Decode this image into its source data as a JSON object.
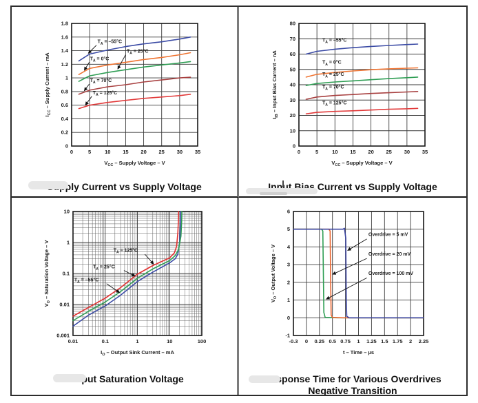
{
  "page": {
    "background": "#ffffff",
    "border_color": "#2c2c2c",
    "divider_vertical_color": "#7b7b7b",
    "divider_horizontal_color": "#161616",
    "grid_color": "#3a3a3a",
    "minor_grid_color": "#5f5f5f",
    "frame_color": "#151515",
    "text_color": "#1a1a1a",
    "arrow_color": "#111111"
  },
  "chart_data": [
    {
      "type": "line",
      "title": "Supply Current vs Supply Voltage",
      "xlabel": "V_{CC} – Supply Voltage – V",
      "ylabel": "I_{CC} – Supply Current – mA",
      "x_scale": "linear",
      "y_scale": "linear",
      "xlim": [
        0,
        35
      ],
      "ylim": [
        0,
        1.8
      ],
      "x_ticks": [
        0,
        5,
        10,
        15,
        20,
        25,
        30,
        35
      ],
      "x_tick_labels": [
        "0",
        "5",
        "10",
        "15",
        "20",
        "25",
        "30",
        "35"
      ],
      "y_ticks": [
        0,
        0.2,
        0.4,
        0.6,
        0.8,
        1,
        1.2,
        1.4,
        1.6,
        1.8
      ],
      "y_tick_labels": [
        "0",
        "0.2",
        "0.4",
        "0.6",
        "0.8",
        "1",
        "1.2",
        "1.4",
        "1.6",
        "1.8"
      ],
      "grid": true,
      "legend_position": "inline-annotations",
      "series": [
        {
          "name": "TA = -55°C",
          "color": "#3b4ba5",
          "x": [
            2,
            5,
            10,
            15,
            20,
            25,
            30,
            33
          ],
          "y": [
            1.25,
            1.35,
            1.41,
            1.46,
            1.5,
            1.53,
            1.57,
            1.6
          ]
        },
        {
          "name": "TA = 0°C",
          "color": "#ef7432",
          "x": [
            2,
            5,
            10,
            15,
            20,
            25,
            30,
            33
          ],
          "y": [
            1.05,
            1.14,
            1.19,
            1.23,
            1.27,
            1.3,
            1.34,
            1.37
          ]
        },
        {
          "name": "TA = 25°C",
          "color": "#2f9e54",
          "x": [
            2,
            5,
            10,
            15,
            20,
            25,
            30,
            33
          ],
          "y": [
            0.95,
            1.03,
            1.08,
            1.12,
            1.16,
            1.19,
            1.22,
            1.24
          ]
        },
        {
          "name": "TA = 70°C",
          "color": "#a84040",
          "x": [
            2,
            5,
            10,
            15,
            20,
            25,
            30,
            33
          ],
          "y": [
            0.76,
            0.82,
            0.87,
            0.9,
            0.94,
            0.97,
            1.0,
            1.01
          ]
        },
        {
          "name": "TA = 125°C",
          "color": "#e23b3b",
          "x": [
            2,
            5,
            10,
            15,
            20,
            25,
            30,
            33
          ],
          "y": [
            0.55,
            0.6,
            0.64,
            0.67,
            0.7,
            0.72,
            0.74,
            0.76
          ]
        }
      ],
      "annotations": [
        {
          "text": "T_{A} = –55°C",
          "x": 7.2,
          "y": 1.51,
          "arrow": {
            "x1": 6.9,
            "y1": 1.48,
            "x2": 4.6,
            "y2": 1.36
          }
        },
        {
          "text": "T_{A} = 0°C",
          "x": 5.1,
          "y": 1.26,
          "arrow": {
            "x1": 4.9,
            "y1": 1.23,
            "x2": 3.5,
            "y2": 1.11
          }
        },
        {
          "text": "T_{A} = 25°C",
          "x": 15.3,
          "y": 1.37,
          "arrow": {
            "x1": 15.0,
            "y1": 1.34,
            "x2": 12.8,
            "y2": 1.13
          }
        },
        {
          "text": "T_{A} = 70°C",
          "x": 5.1,
          "y": 0.94,
          "arrow": {
            "x1": 4.9,
            "y1": 0.91,
            "x2": 3.5,
            "y2": 0.81
          }
        },
        {
          "text": "T_{A} = 125°C",
          "x": 5.9,
          "y": 0.76,
          "arrow": {
            "x1": 5.6,
            "y1": 0.73,
            "x2": 3.8,
            "y2": 0.6
          }
        }
      ]
    },
    {
      "type": "line",
      "title": "Input Bias Current vs Supply Voltage",
      "xlabel": "V_{CC} – Supply Voltage – V",
      "ylabel": "I_{IB} – Input Bias Current – nA",
      "x_scale": "linear",
      "y_scale": "linear",
      "xlim": [
        0,
        35
      ],
      "ylim": [
        0,
        80
      ],
      "x_ticks": [
        0,
        5,
        10,
        15,
        20,
        25,
        30,
        35
      ],
      "x_tick_labels": [
        "0",
        "5",
        "10",
        "15",
        "20",
        "25",
        "30",
        "35"
      ],
      "y_ticks": [
        0,
        10,
        20,
        30,
        40,
        50,
        60,
        70,
        80
      ],
      "y_tick_labels": [
        "0",
        "10",
        "20",
        "30",
        "40",
        "50",
        "60",
        "70",
        "80"
      ],
      "grid": true,
      "legend_position": "inline-annotations",
      "series": [
        {
          "name": "TA = -55°C",
          "color": "#3b4ba5",
          "x": [
            2,
            5,
            10,
            15,
            20,
            25,
            30,
            33
          ],
          "y": [
            60,
            61.8,
            63.2,
            64.2,
            65,
            65.6,
            66.2,
            66.5
          ]
        },
        {
          "name": "TA = 0°C",
          "color": "#ef7432",
          "x": [
            2,
            5,
            10,
            15,
            20,
            25,
            30,
            33
          ],
          "y": [
            45,
            46.8,
            48,
            49,
            49.8,
            50.4,
            50.8,
            51
          ]
        },
        {
          "name": "TA = 25°C",
          "color": "#2f9e54",
          "x": [
            2,
            5,
            10,
            15,
            20,
            25,
            30,
            33
          ],
          "y": [
            39.5,
            40.8,
            41.8,
            42.5,
            43.3,
            44,
            44.6,
            45
          ]
        },
        {
          "name": "TA = 70°C",
          "color": "#a84040",
          "x": [
            2,
            5,
            10,
            15,
            20,
            25,
            30,
            33
          ],
          "y": [
            30.5,
            32,
            33,
            33.6,
            34.3,
            34.8,
            35.3,
            35.6
          ]
        },
        {
          "name": "TA = 125°C",
          "color": "#e23b3b",
          "x": [
            2,
            5,
            10,
            15,
            20,
            25,
            30,
            33
          ],
          "y": [
            21,
            22,
            22.6,
            23,
            23.5,
            24,
            24.3,
            24.6
          ]
        }
      ],
      "annotations": [
        {
          "text": "T_{A} = –55°C",
          "x": 6.5,
          "y": 68.2
        },
        {
          "text": "T_{A} = 0°C",
          "x": 6.5,
          "y": 53.6
        },
        {
          "text": "T_{A} = 25°C",
          "x": 6.5,
          "y": 45.8
        },
        {
          "text": "T_{A} = 70°C",
          "x": 6.5,
          "y": 37.6
        },
        {
          "text": "T_{A} = 125°C",
          "x": 6.5,
          "y": 27.2
        }
      ]
    },
    {
      "type": "line",
      "title": "Output Saturation Voltage",
      "xlabel": "I_{O} – Output Sink Current – mA",
      "ylabel": "V_{O} – Saturation Voltage – V",
      "x_scale": "log",
      "y_scale": "log",
      "xlim": [
        0.01,
        100
      ],
      "ylim": [
        0.001,
        10
      ],
      "x_ticks": [
        0.01,
        0.1,
        1,
        10,
        100
      ],
      "x_tick_labels": [
        "0.01",
        "0.1",
        "1",
        "10",
        "100"
      ],
      "y_ticks": [
        0.001,
        0.01,
        0.1,
        1,
        10
      ],
      "y_tick_labels": [
        "0.001",
        "0.01",
        "0.1",
        "1",
        "10"
      ],
      "grid": true,
      "minor_grid": true,
      "legend_position": "inline-annotations",
      "series": [
        {
          "name": "TA = -55°C",
          "color": "#3b4ba5",
          "x": [
            0.01,
            0.03,
            0.1,
            0.3,
            1,
            3,
            10,
            15,
            18,
            20.5,
            21.7,
            22
          ],
          "y": [
            0.002,
            0.0045,
            0.009,
            0.02,
            0.055,
            0.11,
            0.22,
            0.3,
            0.42,
            1.0,
            5,
            10
          ]
        },
        {
          "name": "TA = 25°C",
          "color": "#2f9e54",
          "x": [
            0.01,
            0.03,
            0.1,
            0.3,
            1,
            3,
            10,
            15,
            19,
            22.5,
            23.7,
            24
          ],
          "y": [
            0.003,
            0.006,
            0.012,
            0.026,
            0.07,
            0.14,
            0.26,
            0.38,
            0.6,
            1.6,
            5,
            10
          ]
        },
        {
          "name": "TA = 125°C",
          "color": "#e22f2f",
          "x": [
            0.01,
            0.03,
            0.1,
            0.3,
            1,
            3,
            10,
            14,
            16.5,
            18,
            18.7,
            19
          ],
          "y": [
            0.0042,
            0.008,
            0.016,
            0.035,
            0.095,
            0.18,
            0.32,
            0.46,
            0.75,
            2.0,
            5,
            10
          ]
        }
      ],
      "annotations": [
        {
          "text": "T_{A} = 125°C",
          "x": 0.18,
          "y": 0.5,
          "arrow": {
            "x1": 1.7,
            "y1": 0.42,
            "x2": 3.2,
            "y2": 0.2
          }
        },
        {
          "text": "T_{A} = 25°C",
          "x": 0.042,
          "y": 0.145,
          "arrow": {
            "x1": 0.38,
            "y1": 0.125,
            "x2": 0.85,
            "y2": 0.082
          }
        },
        {
          "text": "T_{A} = –55°C",
          "x": 0.011,
          "y": 0.056,
          "arrow": {
            "x1": 0.11,
            "y1": 0.047,
            "x2": 0.28,
            "y2": 0.024
          }
        }
      ]
    },
    {
      "type": "line",
      "title": "Response Time for Various Overdrives",
      "subtitle": "Negative Transition",
      "xlabel": "t – Time – µs",
      "ylabel": "V_{O} – Output Voltage – V",
      "x_scale": "segmented",
      "y_scale": "linear",
      "xlim": [
        -0.3,
        2.25
      ],
      "ylim": [
        -1,
        6
      ],
      "x_ticks": [
        -0.3,
        0,
        0.25,
        0.5,
        0.75,
        1,
        1.25,
        1.5,
        1.75,
        2,
        2.25
      ],
      "x_tick_labels": [
        "-0.3",
        "0",
        "0.25",
        "0.5",
        "0.75",
        "1",
        "1.25",
        "1.5",
        "1.75",
        "2",
        "2.25"
      ],
      "y_ticks": [
        -1,
        0,
        1,
        2,
        3,
        4,
        5,
        6
      ],
      "y_tick_labels": [
        "-1",
        "0",
        "1",
        "2",
        "3",
        "4",
        "5",
        "6"
      ],
      "grid": true,
      "legend_position": "inline-annotations",
      "series": [
        {
          "name": "Overdrive = 100 mV",
          "color": "#2f9e54",
          "x": [
            -0.3,
            0.29,
            0.315,
            0.325,
            0.335,
            0.36,
            0.6,
            2.25
          ],
          "y": [
            5,
            5,
            4.9,
            2.5,
            0.3,
            0.02,
            0,
            0
          ]
        },
        {
          "name": "Overdrive = 20 mV",
          "color": "#e8652f",
          "x": [
            -0.3,
            0.43,
            0.455,
            0.465,
            0.475,
            0.5,
            0.7,
            2.25
          ],
          "y": [
            5,
            5,
            4.9,
            2.0,
            0.15,
            0.02,
            0,
            0
          ]
        },
        {
          "name": "Overdrive = 5 mV",
          "color": "#3b44a0",
          "x": [
            -0.3,
            0.7,
            0.73,
            0.755,
            0.765,
            0.775,
            0.82,
            2.25
          ],
          "y": [
            5,
            5,
            5.05,
            4.5,
            1.0,
            0.08,
            0,
            0
          ]
        }
      ],
      "annotations": [
        {
          "text": "Overdrive = 5 mV",
          "x": 1.19,
          "y": 4.62,
          "arrow": {
            "x1": 1.16,
            "y1": 4.45,
            "x2": 0.79,
            "y2": 3.8
          }
        },
        {
          "text": "Overdrive = 20 mV",
          "x": 1.19,
          "y": 3.52,
          "arrow": {
            "x1": 1.16,
            "y1": 3.35,
            "x2": 0.5,
            "y2": 2.45
          }
        },
        {
          "text": "Overdrive = 100 mV",
          "x": 1.19,
          "y": 2.42,
          "arrow": {
            "x1": 1.16,
            "y1": 2.25,
            "x2": 0.38,
            "y2": 1.05
          }
        }
      ]
    }
  ]
}
